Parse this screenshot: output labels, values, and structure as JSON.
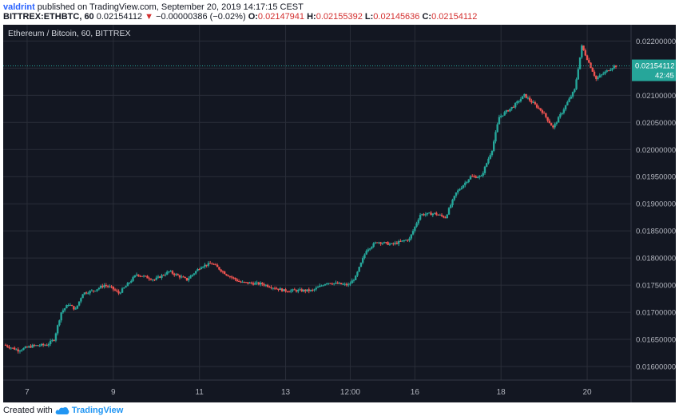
{
  "header": {
    "author": "valdrint",
    "published_text": "published on TradingView.com, September 20, 2019 14:17:15 CEST",
    "symbol": "BITTREX:ETHBTC, 60",
    "last": "0.02154112",
    "change_arrow": "▼",
    "change": "−0.00000386 (−0.02%)",
    "o_label": "O:",
    "o_value": "0.02147941",
    "h_label": "H:",
    "h_value": "0.02155392",
    "l_label": "L:",
    "l_value": "0.02145636",
    "c_label": "C:",
    "c_value": "0.02154112"
  },
  "footer": {
    "created_text": "Created with",
    "brand": "TradingView",
    "logo_icon": "tradingview-cloud-icon"
  },
  "colors": {
    "background": "#131722",
    "grid": "#2a2e39",
    "up": "#26a69a",
    "down": "#ef5350",
    "text": "#b2b5be",
    "price_label_bg": "#26a69a",
    "price_line": "#26a69a"
  },
  "chart_data": {
    "type": "candlestick",
    "title": "Ethereum / Bitcoin, 60, BITTREX",
    "y_range": [
      0.01575,
      0.0223
    ],
    "y_ticks": [
      "0.02200000",
      "0.02150000",
      "0.02100000",
      "0.02050000",
      "0.02000000",
      "0.01950000",
      "0.01900000",
      "0.01850000",
      "0.01800000",
      "0.01750000",
      "0.01700000",
      "0.01650000",
      "0.01600000"
    ],
    "y_tick_values": [
      0.022,
      0.0215,
      0.021,
      0.0205,
      0.02,
      0.0195,
      0.019,
      0.0185,
      0.018,
      0.0175,
      0.017,
      0.0165,
      0.016
    ],
    "x_range": [
      0,
      170
    ],
    "x_ticks": [
      "7",
      "9",
      "11",
      "13",
      "12:00",
      "16",
      "18",
      "20"
    ],
    "x_tick_values": [
      6,
      30,
      54,
      78,
      96,
      114,
      138,
      162
    ],
    "current_price": "0.02154112",
    "current_price_value": 0.02154112,
    "countdown": "42:45",
    "key_points": [
      [
        0,
        0.0164
      ],
      [
        4,
        0.0163
      ],
      [
        8,
        0.01638
      ],
      [
        12,
        0.0164
      ],
      [
        14,
        0.0165
      ],
      [
        16,
        0.017
      ],
      [
        18,
        0.01715
      ],
      [
        20,
        0.01705
      ],
      [
        22,
        0.01735
      ],
      [
        25,
        0.0174
      ],
      [
        28,
        0.0175
      ],
      [
        30,
        0.01745
      ],
      [
        32,
        0.01735
      ],
      [
        34,
        0.01748
      ],
      [
        37,
        0.0177
      ],
      [
        42,
        0.0176
      ],
      [
        46,
        0.01775
      ],
      [
        51,
        0.0176
      ],
      [
        55,
        0.01785
      ],
      [
        58,
        0.0179
      ],
      [
        62,
        0.0177
      ],
      [
        66,
        0.01755
      ],
      [
        72,
        0.01752
      ],
      [
        78,
        0.0174
      ],
      [
        86,
        0.0174
      ],
      [
        90,
        0.01755
      ],
      [
        96,
        0.0175
      ],
      [
        98,
        0.01765
      ],
      [
        101,
        0.01815
      ],
      [
        104,
        0.0183
      ],
      [
        108,
        0.01825
      ],
      [
        113,
        0.01835
      ],
      [
        116,
        0.0188
      ],
      [
        120,
        0.01882
      ],
      [
        123,
        0.01875
      ],
      [
        126,
        0.0192
      ],
      [
        130,
        0.0195
      ],
      [
        133,
        0.0195
      ],
      [
        136,
        0.02
      ],
      [
        138,
        0.0206
      ],
      [
        142,
        0.0208
      ],
      [
        145,
        0.021
      ],
      [
        150,
        0.0207
      ],
      [
        153,
        0.0204
      ],
      [
        156,
        0.02075
      ],
      [
        159,
        0.0211
      ],
      [
        161,
        0.0219
      ],
      [
        163,
        0.0216
      ],
      [
        165,
        0.0213
      ],
      [
        167,
        0.0214
      ],
      [
        170,
        0.02154
      ]
    ]
  }
}
